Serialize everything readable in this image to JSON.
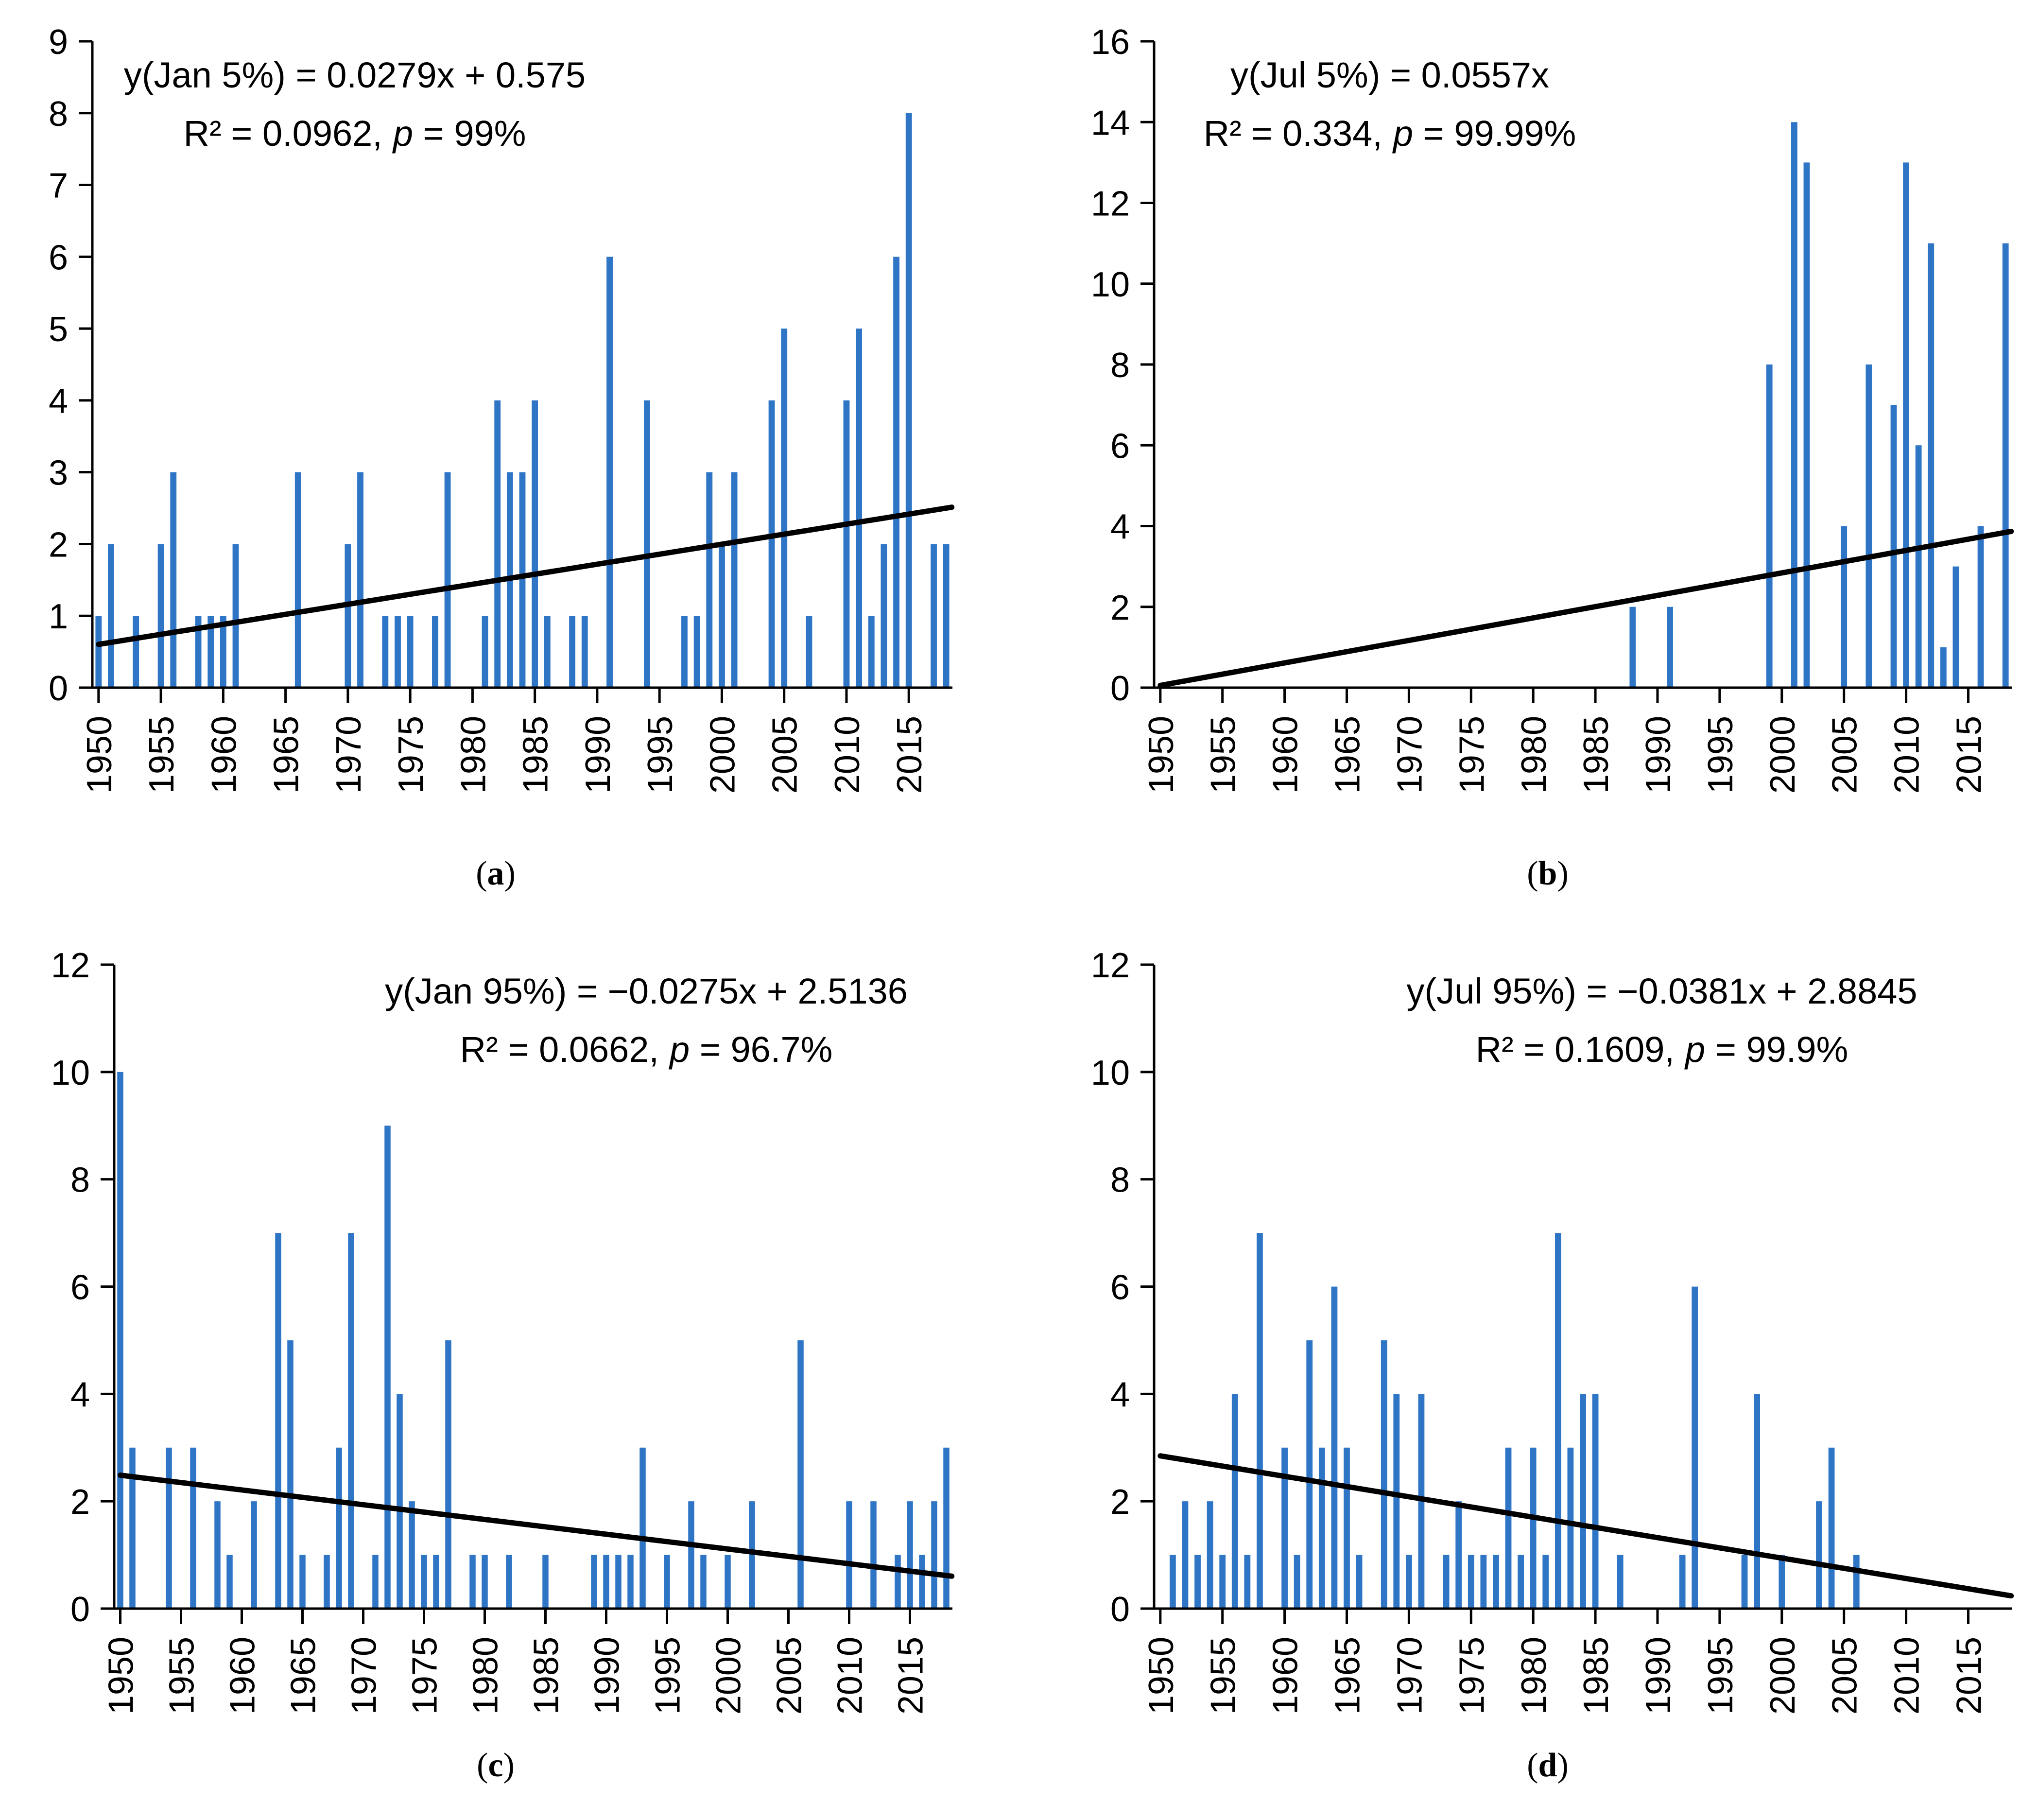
{
  "bar_color": "#2E75C6",
  "trend_color": "#000000",
  "chart_data": [
    {
      "panel": "a",
      "type": "bar",
      "caption": "a",
      "ylim": [
        0,
        9
      ],
      "yticks": [
        "0",
        "1",
        "2",
        "3",
        "4",
        "5",
        "6",
        "7",
        "8",
        "9"
      ],
      "xlim": [
        1950,
        2018
      ],
      "xticks": [
        "1950",
        "1955",
        "1960",
        "1965",
        "1970",
        "1975",
        "1980",
        "1985",
        "1990",
        "1995",
        "2000",
        "2005",
        "2010",
        "2015"
      ],
      "equation": "y(Jan 5%) = 0.0279x + 0.575",
      "r2": "R² = 0.0962,",
      "p_label": "p",
      "p_value": " = 99%",
      "trend": {
        "slope": 0.0279,
        "intercept": 0.575
      },
      "x": [
        1950,
        1951,
        1953,
        1955,
        1956,
        1958,
        1959,
        1960,
        1961,
        1966,
        1970,
        1971,
        1973,
        1974,
        1975,
        1977,
        1978,
        1981,
        1982,
        1983,
        1984,
        1985,
        1986,
        1988,
        1989,
        1991,
        1994,
        1997,
        1998,
        1999,
        2000,
        2001,
        2004,
        2005,
        2007,
        2010,
        2011,
        2012,
        2013,
        2014,
        2015,
        2017,
        2018
      ],
      "values": [
        1,
        2,
        1,
        2,
        3,
        1,
        1,
        1,
        2,
        3,
        2,
        3,
        1,
        1,
        1,
        1,
        3,
        1,
        4,
        3,
        3,
        4,
        1,
        1,
        1,
        6,
        4,
        1,
        1,
        3,
        2,
        3,
        4,
        5,
        1,
        4,
        5,
        1,
        2,
        6,
        8,
        2,
        2
      ]
    },
    {
      "panel": "b",
      "type": "bar",
      "caption": "b",
      "ylim": [
        0,
        16
      ],
      "yticks": [
        "0",
        "2",
        "4",
        "6",
        "8",
        "10",
        "12",
        "14",
        "16"
      ],
      "xlim": [
        1950,
        2018
      ],
      "xticks": [
        "1950",
        "1955",
        "1960",
        "1965",
        "1970",
        "1975",
        "1980",
        "1985",
        "1990",
        "1995",
        "2000",
        "2005",
        "2010",
        "2015"
      ],
      "equation": "y(Jul 5%) = 0.0557x",
      "r2": "R² = 0.334,",
      "p_label": "p",
      "p_value": " = 99.99%",
      "trend": {
        "slope": 0.0557,
        "intercept": 0
      },
      "x": [
        1988,
        1991,
        1999,
        2001,
        2002,
        2005,
        2007,
        2009,
        2010,
        2011,
        2012,
        2013,
        2014,
        2016,
        2018
      ],
      "values": [
        2,
        2,
        8,
        14,
        13,
        4,
        8,
        7,
        13,
        6,
        11,
        1,
        3,
        4,
        11
      ]
    },
    {
      "panel": "c",
      "type": "bar",
      "caption": "c",
      "ylim": [
        0,
        12
      ],
      "yticks": [
        "0",
        "2",
        "4",
        "6",
        "8",
        "10",
        "12"
      ],
      "xlim": [
        1950,
        2018
      ],
      "xticks": [
        "1950",
        "1955",
        "1960",
        "1965",
        "1970",
        "1975",
        "1980",
        "1985",
        "1990",
        "1995",
        "2000",
        "2005",
        "2010",
        "2015"
      ],
      "equation": "y(Jan 95%) = −0.0275x + 2.5136",
      "r2": "R² = 0.0662,",
      "p_label": "p",
      "p_value": " = 96.7%",
      "trend": {
        "slope": -0.0275,
        "intercept": 2.5136
      },
      "x": [
        1950,
        1951,
        1954,
        1956,
        1958,
        1959,
        1961,
        1963,
        1964,
        1965,
        1967,
        1968,
        1969,
        1971,
        1972,
        1973,
        1974,
        1975,
        1976,
        1977,
        1979,
        1980,
        1982,
        1985,
        1989,
        1990,
        1991,
        1992,
        1993,
        1995,
        1997,
        1998,
        2000,
        2002,
        2006,
        2010,
        2012,
        2014,
        2015,
        2016,
        2017,
        2018
      ],
      "values": [
        10,
        3,
        3,
        3,
        2,
        1,
        2,
        7,
        5,
        1,
        1,
        3,
        7,
        1,
        9,
        4,
        2,
        1,
        1,
        5,
        1,
        1,
        1,
        1,
        1,
        1,
        1,
        1,
        3,
        1,
        2,
        1,
        1,
        2,
        5,
        2,
        2,
        1,
        2,
        1,
        2,
        3
      ]
    },
    {
      "panel": "d",
      "type": "bar",
      "caption": "d",
      "ylim": [
        0,
        12
      ],
      "yticks": [
        "0",
        "2",
        "4",
        "6",
        "8",
        "10",
        "12"
      ],
      "xlim": [
        1950,
        2018
      ],
      "xticks": [
        "1950",
        "1955",
        "1960",
        "1965",
        "1970",
        "1975",
        "1980",
        "1985",
        "1990",
        "1995",
        "2000",
        "2005",
        "2010",
        "2015"
      ],
      "equation": "y(Jul 95%) = −0.0381x + 2.8845",
      "r2": "R² = 0.1609,",
      "p_label": "p",
      "p_value": " = 99.9%",
      "trend": {
        "slope": -0.0381,
        "intercept": 2.8845
      },
      "x": [
        1951,
        1952,
        1953,
        1954,
        1955,
        1956,
        1957,
        1958,
        1960,
        1961,
        1962,
        1963,
        1964,
        1965,
        1966,
        1968,
        1969,
        1970,
        1971,
        1973,
        1974,
        1975,
        1976,
        1977,
        1978,
        1979,
        1980,
        1981,
        1982,
        1983,
        1984,
        1985,
        1987,
        1992,
        1993,
        1997,
        1998,
        2000,
        2003,
        2004,
        2006
      ],
      "values": [
        1,
        2,
        1,
        2,
        1,
        4,
        1,
        7,
        3,
        1,
        5,
        3,
        6,
        3,
        1,
        5,
        4,
        1,
        4,
        1,
        2,
        1,
        1,
        1,
        3,
        1,
        3,
        1,
        7,
        3,
        4,
        4,
        1,
        1,
        6,
        1,
        4,
        1,
        2,
        3,
        1
      ]
    }
  ]
}
